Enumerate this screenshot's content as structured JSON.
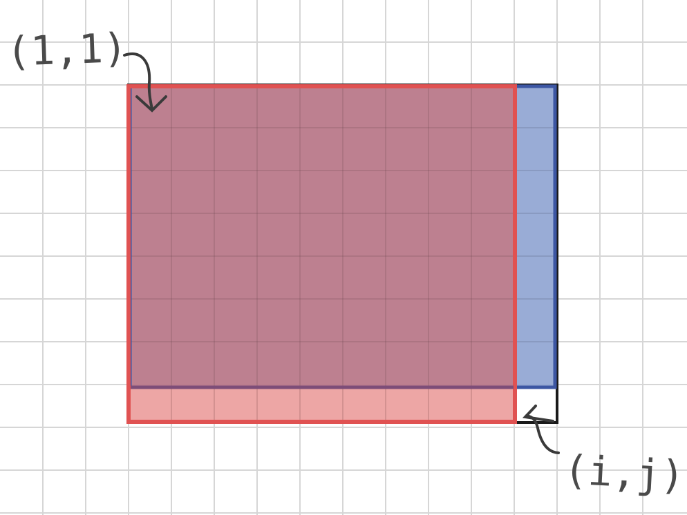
{
  "labels": {
    "top_left": "(1,1)",
    "bottom_right": "(i,j)"
  },
  "colors": {
    "grid": "#d6d6d6",
    "outline": "#1a1a1a",
    "red_stroke": "#e05252",
    "red_fill": "#e8908e",
    "blue_stroke": "#3c56a3",
    "blue_fill": "#8ea3d2",
    "overlap_fill": "#b9798a",
    "annotation": "#4a4a4a"
  }
}
